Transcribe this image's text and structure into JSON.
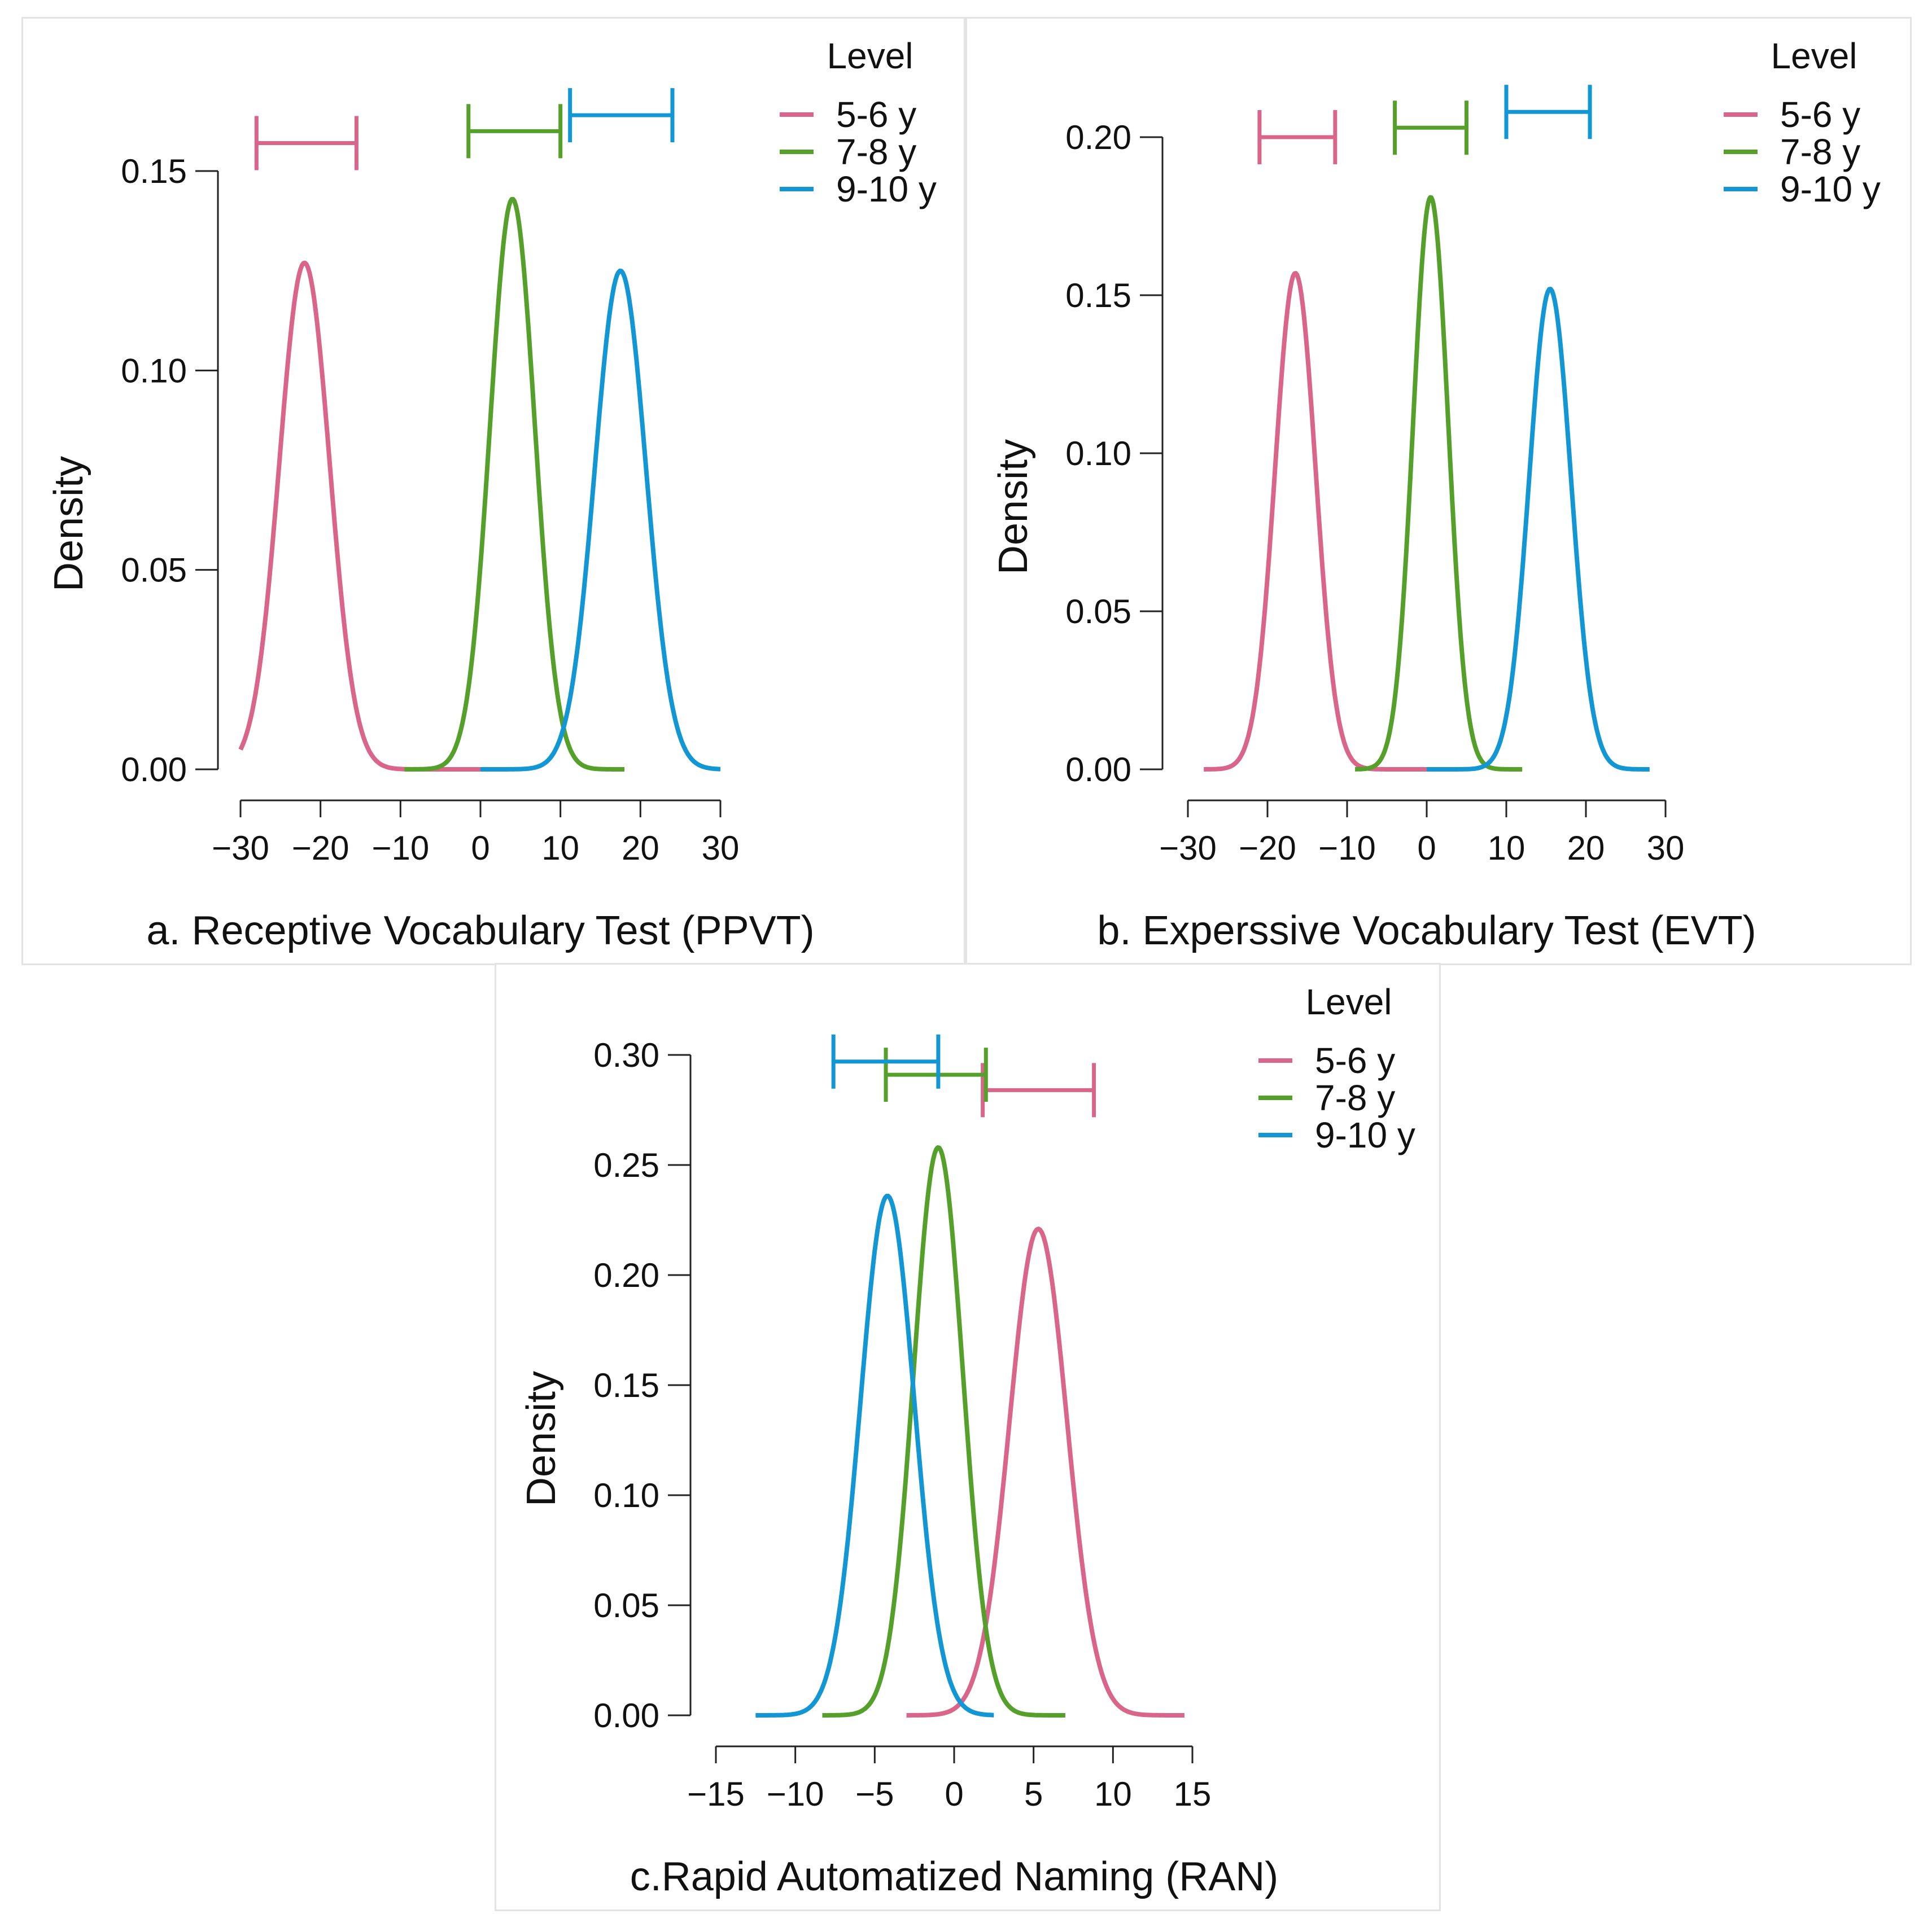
{
  "legend": {
    "title": "Level",
    "entries": [
      {
        "label": "5-6 y",
        "color": "#d9668a"
      },
      {
        "label": "7-8 y",
        "color": "#55a02a"
      },
      {
        "label": "9-10 y",
        "color": "#1396d4"
      }
    ]
  },
  "chart_data": [
    {
      "type": "line",
      "xlabel": "a. Receptive Vocabulary Test (PPVT)",
      "ylabel": "Density",
      "xlim": [
        -30,
        30
      ],
      "ylim": [
        0,
        0.15
      ],
      "xticks": [
        -30,
        -20,
        -10,
        0,
        10,
        20,
        30
      ],
      "xtick_labels": [
        "−30",
        "−20",
        "−10",
        "0",
        "10",
        "20",
        "30"
      ],
      "yticks": [
        0,
        0.05,
        0.1,
        0.15
      ],
      "ytick_labels": [
        "0.00",
        "0.05",
        "0.10",
        "0.15"
      ],
      "intervals_y": [
        0.157,
        0.16,
        0.164
      ],
      "series": [
        {
          "name": "5-6 y",
          "color": "#d9668a",
          "mean": -22,
          "peak": 0.127,
          "range": [
            -30,
            0
          ],
          "interval": [
            -28,
            -15.5
          ]
        },
        {
          "name": "7-8 y",
          "color": "#55a02a",
          "mean": 4,
          "peak": 0.143,
          "range": [
            -9.5,
            18
          ],
          "interval": [
            -1.5,
            10
          ]
        },
        {
          "name": "9-10 y",
          "color": "#1396d4",
          "mean": 17.5,
          "peak": 0.125,
          "range": [
            0,
            30
          ],
          "interval": [
            11.2,
            24
          ]
        }
      ],
      "grid": false,
      "legend_position": "top-right"
    },
    {
      "type": "line",
      "xlabel": "b. Experssive Vocabulary Test (EVT)",
      "ylabel": "Density",
      "xlim": [
        -30,
        30
      ],
      "ylim": [
        0,
        0.2
      ],
      "xticks": [
        -30,
        -20,
        -10,
        0,
        10,
        20,
        30
      ],
      "xtick_labels": [
        "−30",
        "−20",
        "−10",
        "0",
        "10",
        "20",
        "30"
      ],
      "yticks": [
        0,
        0.05,
        0.1,
        0.15,
        0.2
      ],
      "ytick_labels": [
        "0.00",
        "0.05",
        "0.10",
        "0.15",
        "0.20"
      ],
      "intervals_y": [
        0.2,
        0.203,
        0.208
      ],
      "series": [
        {
          "name": "5-6 y",
          "color": "#d9668a",
          "mean": -16.5,
          "peak": 0.157,
          "range": [
            -28,
            0
          ],
          "interval": [
            -21,
            -11.5
          ]
        },
        {
          "name": "7-8 y",
          "color": "#55a02a",
          "mean": 0.5,
          "peak": 0.181,
          "range": [
            -9,
            12
          ],
          "interval": [
            -4,
            5
          ]
        },
        {
          "name": "9-10 y",
          "color": "#1396d4",
          "mean": 15.5,
          "peak": 0.152,
          "range": [
            0,
            28
          ],
          "interval": [
            10,
            20.5
          ]
        }
      ],
      "grid": false,
      "legend_position": "top-right"
    },
    {
      "type": "line",
      "xlabel": "c.Rapid  Automatized Naming (RAN)",
      "ylabel": "Density",
      "xlim": [
        -15,
        15
      ],
      "ylim": [
        0,
        0.3
      ],
      "xticks": [
        -15,
        -10,
        -5,
        0,
        5,
        10,
        15
      ],
      "xtick_labels": [
        "−15",
        "−10",
        "−5",
        "0",
        "5",
        "10",
        "15"
      ],
      "yticks": [
        0,
        0.05,
        0.1,
        0.15,
        0.2,
        0.25,
        0.3
      ],
      "ytick_labels": [
        "0.00",
        "0.05",
        "0.10",
        "0.15",
        "0.20",
        "0.25",
        "0.30"
      ],
      "intervals_y": [
        0.284,
        0.291,
        0.297
      ],
      "series": [
        {
          "name": "5-6 y",
          "color": "#d9668a",
          "mean": 5.3,
          "peak": 0.221,
          "range": [
            -3,
            14.5
          ],
          "interval": [
            1.8,
            8.8
          ]
        },
        {
          "name": "7-8 y",
          "color": "#55a02a",
          "mean": -1,
          "peak": 0.258,
          "range": [
            -8.3,
            7
          ],
          "interval": [
            -4.3,
            2
          ]
        },
        {
          "name": "9-10 y",
          "color": "#1396d4",
          "mean": -4.2,
          "peak": 0.236,
          "range": [
            -12.5,
            2.5
          ],
          "interval": [
            -7.6,
            -1
          ]
        }
      ],
      "grid": false,
      "legend_position": "top-right"
    }
  ]
}
